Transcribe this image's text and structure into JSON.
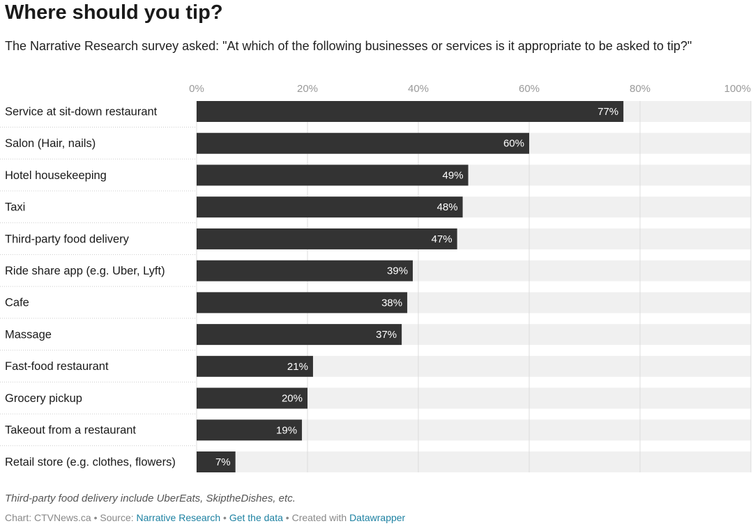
{
  "chart_data": {
    "type": "bar",
    "orientation": "horizontal",
    "title": "Where should you tip?",
    "subtitle": "The Narrative Research survey asked: \"At which of the following businesses or services is it appropriate to be asked to tip?\"",
    "categories": [
      "Service at sit-down restaurant",
      "Salon (Hair, nails)",
      "Hotel housekeeping",
      "Taxi",
      "Third-party food delivery",
      "Ride share app (e.g. Uber, Lyft)",
      "Cafe",
      "Massage",
      "Fast-food restaurant",
      "Grocery pickup",
      "Takeout from a restaurant",
      "Retail store (e.g. clothes, flowers)"
    ],
    "values": [
      77,
      60,
      49,
      48,
      47,
      39,
      38,
      37,
      21,
      20,
      19,
      7
    ],
    "value_labels": [
      "77%",
      "60%",
      "49%",
      "48%",
      "47%",
      "39%",
      "38%",
      "37%",
      "21%",
      "20%",
      "19%",
      "7%"
    ],
    "color": "#333333",
    "track_color": "#f0f0f0",
    "xlim": [
      0,
      100
    ],
    "xticks": [
      {
        "value": 0,
        "label": "0%"
      },
      {
        "value": 20,
        "label": "20%"
      },
      {
        "value": 40,
        "label": "40%"
      },
      {
        "value": 60,
        "label": "60%"
      },
      {
        "value": 80,
        "label": "80%"
      },
      {
        "value": 100,
        "label": "100%"
      }
    ],
    "grid": true,
    "note": "Third-party food delivery include UberEats, SkiptheDishes, etc.",
    "byline": "Chart: CTVNews.ca",
    "separator": "•",
    "source_label": "Source:",
    "source": "Narrative Research",
    "get_data": "Get the data",
    "created_with": "Created with",
    "tool": "Datawrapper"
  }
}
